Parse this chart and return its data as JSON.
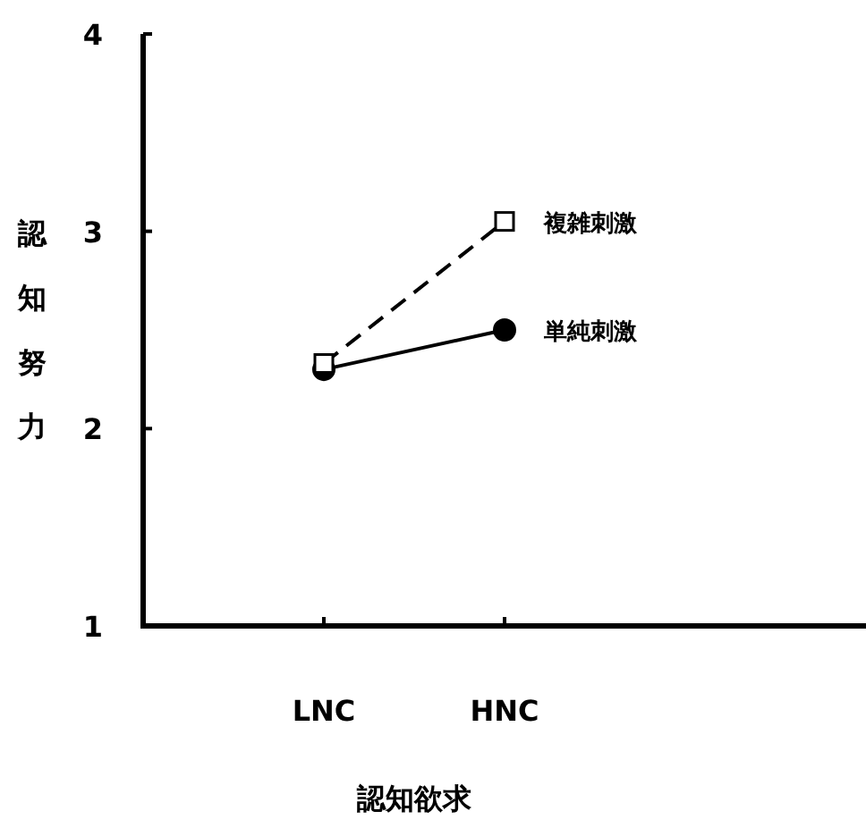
{
  "chart_data": {
    "type": "line",
    "xlabel": "認知欲求",
    "ylabel": "認知努力",
    "categories": [
      "LNC",
      "HNC"
    ],
    "series": [
      {
        "name": "単純刺激",
        "color": "#000000",
        "values": [
          2.3,
          2.5
        ],
        "marker": "circle",
        "line_style": "solid"
      },
      {
        "name": "複雑刺激",
        "color": "#000000",
        "values": [
          2.33,
          3.05
        ],
        "marker": "square",
        "line_style": "dashed"
      }
    ],
    "ylim": [
      1,
      4
    ],
    "yticks": [
      1,
      2,
      3,
      4
    ]
  }
}
